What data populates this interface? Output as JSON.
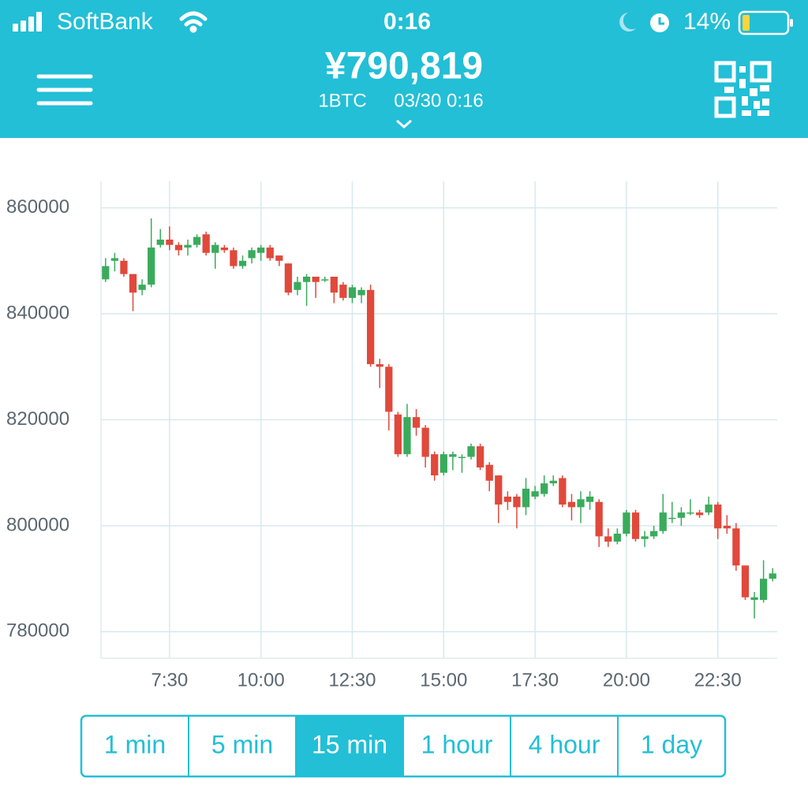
{
  "status_bar": {
    "carrier": "SoftBank",
    "time": "0:16",
    "battery": "14%"
  },
  "header": {
    "price": "¥790,819",
    "pair": "1BTC",
    "timestamp": "03/30 0:16"
  },
  "chart_data": {
    "type": "candlestick",
    "categories": [
      null,
      null,
      null,
      null,
      null,
      null,
      null,
      "7:30",
      null,
      null,
      null,
      null,
      null,
      null,
      null,
      null,
      null,
      "10:00",
      null,
      null,
      null,
      null,
      null,
      null,
      null,
      null,
      null,
      "12:30",
      null,
      null,
      null,
      null,
      null,
      null,
      null,
      null,
      null,
      "15:00",
      null,
      null,
      null,
      null,
      null,
      null,
      null,
      null,
      null,
      "17:30",
      null,
      null,
      null,
      null,
      null,
      null,
      null,
      null,
      null,
      "20:00",
      null,
      null,
      null,
      null,
      null,
      null,
      null,
      null,
      null,
      "22:30",
      null,
      null,
      null,
      null,
      null,
      null
    ],
    "open": [
      846500,
      850000,
      850000,
      847500,
      844500,
      845500,
      853000,
      854000,
      853000,
      852500,
      853000,
      855000,
      851500,
      852500,
      852000,
      849000,
      850500,
      851500,
      852500,
      851000,
      849500,
      844500,
      846000,
      847000,
      846500,
      847000,
      845500,
      843000,
      843500,
      844500,
      830500,
      830000,
      821000,
      813500,
      820500,
      818500,
      813500,
      810000,
      813000,
      813000,
      813000,
      815000,
      811500,
      809500,
      805500,
      805500,
      803500,
      805500,
      806000,
      808000,
      809000,
      804500,
      803500,
      804500,
      804500,
      798000,
      797000,
      798500,
      802500,
      797500,
      798000,
      799000,
      801500,
      801500,
      802500,
      802500,
      802500,
      804000,
      800000,
      799500,
      792500,
      786000,
      786000,
      790000
    ],
    "high": [
      850500,
      851500,
      850500,
      847500,
      846500,
      858000,
      856000,
      856500,
      853500,
      854000,
      855000,
      855500,
      853500,
      853000,
      852500,
      851000,
      852500,
      853000,
      853000,
      851000,
      849500,
      847000,
      847500,
      847000,
      847000,
      847000,
      846000,
      845500,
      845000,
      845500,
      831500,
      830500,
      821500,
      823000,
      822000,
      819000,
      814000,
      814000,
      814000,
      813500,
      815500,
      815500,
      812000,
      809500,
      806500,
      806000,
      809000,
      807500,
      809500,
      809500,
      809500,
      806000,
      806500,
      806500,
      805000,
      799500,
      799500,
      803000,
      803000,
      799000,
      800000,
      806000,
      804500,
      803500,
      805000,
      803000,
      805500,
      804500,
      802000,
      800500,
      792500,
      787500,
      793500,
      792000
    ],
    "low": [
      846000,
      848000,
      847000,
      840500,
      843500,
      845000,
      852500,
      852000,
      851000,
      851000,
      852500,
      851000,
      848500,
      851500,
      848500,
      848500,
      849500,
      850000,
      850000,
      849000,
      843500,
      843500,
      841500,
      843000,
      846000,
      842000,
      842500,
      842000,
      842000,
      830000,
      826000,
      818000,
      813000,
      813000,
      817000,
      811000,
      808500,
      809500,
      810500,
      810000,
      812500,
      810500,
      806500,
      800500,
      803000,
      799500,
      802000,
      805000,
      805500,
      807500,
      803500,
      801000,
      800500,
      803000,
      796000,
      796000,
      796500,
      798000,
      797000,
      796000,
      797500,
      798500,
      800500,
      800000,
      802000,
      801500,
      802000,
      797500,
      798500,
      791500,
      786000,
      782500,
      785500,
      789500
    ],
    "close": [
      849000,
      850500,
      847500,
      844000,
      845500,
      852500,
      854000,
      853000,
      852000,
      853000,
      854500,
      851500,
      853000,
      852000,
      849000,
      850000,
      852000,
      852500,
      850500,
      850000,
      844000,
      846000,
      847000,
      846000,
      846500,
      844000,
      843000,
      845000,
      844500,
      830500,
      830000,
      821500,
      813500,
      820500,
      818500,
      813000,
      809500,
      813500,
      813500,
      813000,
      815000,
      811000,
      808500,
      804000,
      804500,
      803500,
      807000,
      806500,
      808000,
      808500,
      804000,
      803500,
      805000,
      805500,
      798000,
      797000,
      798500,
      802500,
      797500,
      798000,
      799000,
      802500,
      801500,
      802500,
      802500,
      802000,
      804000,
      799500,
      799500,
      792500,
      786500,
      786500,
      790000,
      791000
    ],
    "up_color": "#3aab5c",
    "down_color": "#e0493c",
    "ylim": [
      775000,
      865000
    ],
    "yticks": [
      780000,
      800000,
      820000,
      840000,
      860000
    ],
    "grid": true
  },
  "intervals": {
    "options": [
      "1 min",
      "5 min",
      "15 min",
      "1 hour",
      "4 hour",
      "1 day"
    ],
    "selected": 2
  }
}
